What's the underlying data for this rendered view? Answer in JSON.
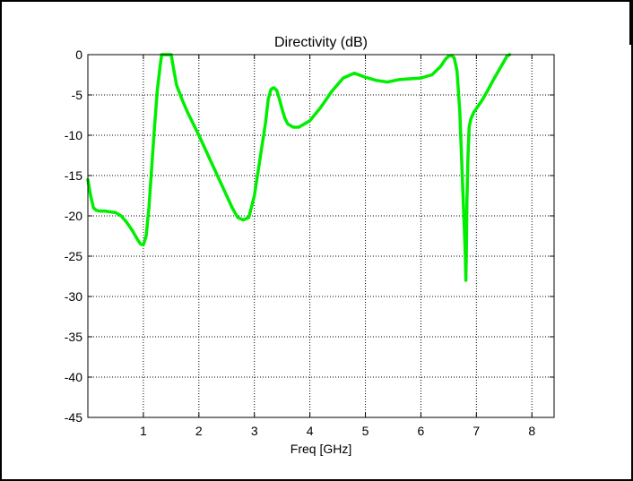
{
  "chart_data": {
    "type": "line",
    "title": "Directivity (dB)",
    "xlabel": "Freq [GHz]",
    "ylabel": "",
    "xlim": [
      0,
      8.4
    ],
    "ylim": [
      -45,
      0
    ],
    "xticks": [
      1,
      2,
      3,
      4,
      5,
      6,
      7,
      8
    ],
    "yticks": [
      0,
      -5,
      -10,
      -15,
      -20,
      -25,
      -30,
      -35,
      -40,
      -45
    ],
    "grid": true,
    "line_color": "#00ee00",
    "series": [
      {
        "x": [
          0.0,
          0.05,
          0.1,
          0.15,
          0.2,
          0.3,
          0.4,
          0.5,
          0.6,
          0.7,
          0.8,
          0.9,
          0.95,
          1.0,
          1.05,
          1.1,
          1.15,
          1.2,
          1.25,
          1.3,
          1.33,
          1.36,
          1.4,
          1.44,
          1.47,
          1.5,
          1.55,
          1.6,
          1.7,
          1.8,
          2.0,
          2.2,
          2.4,
          2.6,
          2.7,
          2.8,
          2.9,
          3.0,
          3.1,
          3.2,
          3.25,
          3.3,
          3.35,
          3.4,
          3.45,
          3.5,
          3.55,
          3.6,
          3.7,
          3.8,
          4.0,
          4.2,
          4.4,
          4.6,
          4.8,
          5.0,
          5.2,
          5.4,
          5.6,
          5.8,
          6.0,
          6.2,
          6.35,
          6.45,
          6.5,
          6.55,
          6.6,
          6.65,
          6.7,
          6.75,
          6.78,
          6.8,
          6.81,
          6.82,
          6.83,
          6.85,
          6.87,
          6.9,
          6.95,
          7.0,
          7.1,
          7.2,
          7.3,
          7.4,
          7.5,
          7.55,
          7.6
        ],
        "y": [
          -15.5,
          -17.5,
          -19.0,
          -19.3,
          -19.4,
          -19.4,
          -19.5,
          -19.6,
          -20.0,
          -20.8,
          -21.8,
          -23.0,
          -23.5,
          -23.6,
          -22.5,
          -19.0,
          -14.0,
          -9.0,
          -4.5,
          -1.5,
          0.0,
          0.0,
          0.0,
          0.0,
          0.0,
          0.0,
          -2.0,
          -3.8,
          -5.6,
          -7.2,
          -10.0,
          -13.0,
          -16.0,
          -19.0,
          -20.2,
          -20.5,
          -20.2,
          -17.5,
          -13.0,
          -8.5,
          -5.5,
          -4.3,
          -4.1,
          -4.4,
          -5.5,
          -6.8,
          -7.9,
          -8.6,
          -9.0,
          -9.0,
          -8.2,
          -6.5,
          -4.5,
          -2.9,
          -2.3,
          -2.8,
          -3.2,
          -3.4,
          -3.1,
          -3.0,
          -2.9,
          -2.5,
          -1.5,
          -0.5,
          -0.2,
          -0.1,
          -0.4,
          -2.0,
          -7.0,
          -16.0,
          -21.0,
          -25.0,
          -28.0,
          -24.0,
          -18.0,
          -12.5,
          -9.0,
          -8.0,
          -7.2,
          -6.7,
          -5.7,
          -4.5,
          -3.2,
          -2.0,
          -0.8,
          -0.2,
          0.0
        ]
      }
    ]
  }
}
